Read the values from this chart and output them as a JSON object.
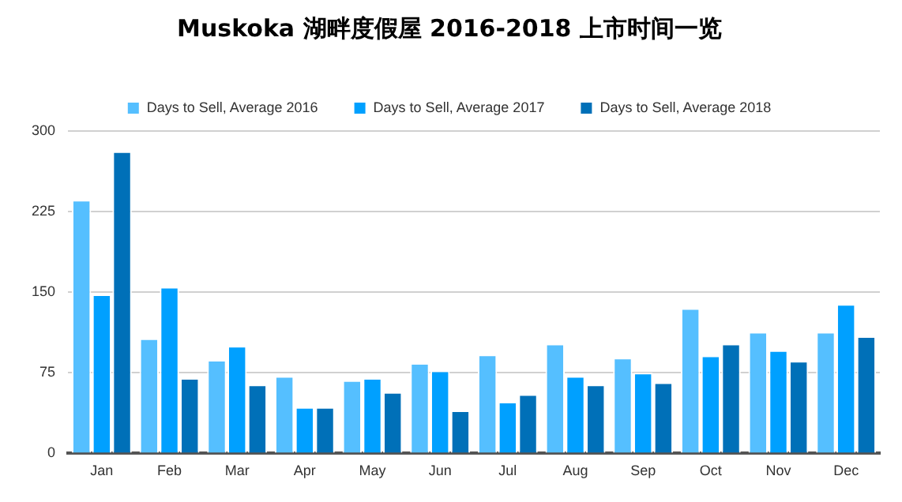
{
  "chart_data": {
    "type": "bar",
    "title": "Muskoka 湖畔度假屋 2016-2018 上市时间一览",
    "categories": [
      "Jan",
      "Feb",
      "Mar",
      "Apr",
      "May",
      "Jun",
      "Jul",
      "Aug",
      "Sep",
      "Oct",
      "Nov",
      "Dec"
    ],
    "series": [
      {
        "name": "Days to Sell, Average 2016",
        "color": "#55bfff",
        "values": [
          236,
          107,
          87,
          72,
          68,
          84,
          92,
          102,
          89,
          135,
          113,
          113
        ]
      },
      {
        "name": "Days to Sell, Average 2017",
        "color": "#00a0ff",
        "values": [
          148,
          155,
          100,
          43,
          70,
          77,
          48,
          72,
          75,
          91,
          96,
          139
        ]
      },
      {
        "name": "Days to Sell, Average 2018",
        "color": "#0070b8",
        "values": [
          281,
          70,
          64,
          43,
          57,
          40,
          55,
          64,
          66,
          102,
          86,
          109
        ]
      }
    ],
    "ylim": [
      0,
      300
    ],
    "yticks": [
      0,
      75,
      150,
      225,
      300
    ],
    "grid": "y",
    "legend": "top"
  }
}
